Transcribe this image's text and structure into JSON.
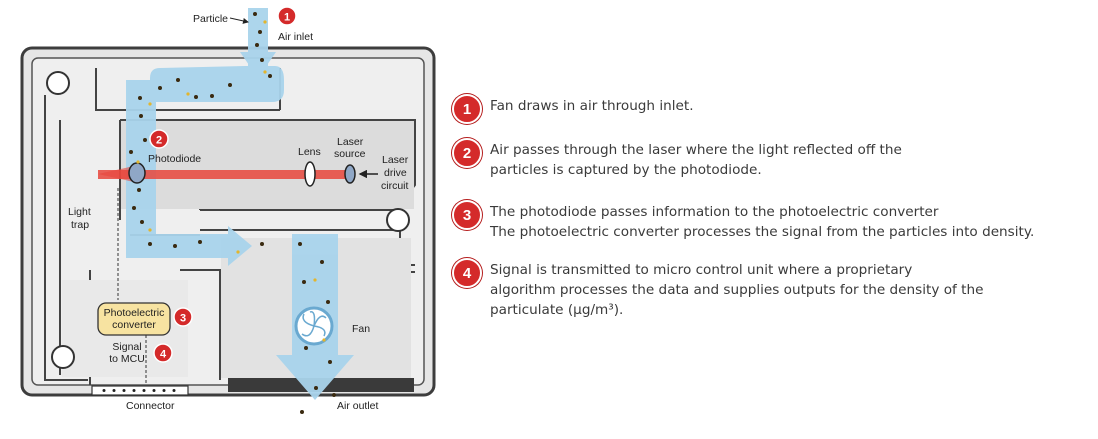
{
  "diagram": {
    "labels": {
      "particle": "Particle",
      "air_inlet": "Air inlet",
      "photodiode": "Photodiode",
      "lens": "Lens",
      "laser_source_1": "Laser",
      "laser_source_2": "source",
      "laser_drive_1": "Laser",
      "laser_drive_2": "drive",
      "laser_drive_3": "circuit",
      "light_trap_1": "Light",
      "light_trap_2": "trap",
      "photoelectric_1": "Photoelectric",
      "photoelectric_2": "converter",
      "signal_1": "Signal",
      "signal_2": "to MCU",
      "fan": "Fan",
      "connector": "Connector",
      "air_outlet": "Air outlet"
    },
    "badges": [
      "1",
      "2",
      "3",
      "4"
    ],
    "colors": {
      "housing": "#e8e8e8",
      "housing_border": "#3d3d3d",
      "airflow": "#a9d4ec",
      "laser": "#e8463c",
      "badge": "#d42a2a",
      "converter": "#f7e3a1"
    }
  },
  "steps": [
    {
      "number": "1",
      "lines": [
        "Fan draws in air through inlet."
      ]
    },
    {
      "number": "2",
      "lines": [
        "Air passes through the laser where the light reflected off the",
        "particles is captured by the photodiode."
      ]
    },
    {
      "number": "3",
      "lines": [
        "The photodiode passes information to the photoelectric converter",
        "The photoelectric converter processes the signal from the particles into density."
      ]
    },
    {
      "number": "4",
      "lines": [
        "Signal is transmitted to micro control unit where a proprietary",
        "algorithm processes the data and supplies outputs for the density of the",
        "particulate (µg/m³)."
      ]
    }
  ]
}
